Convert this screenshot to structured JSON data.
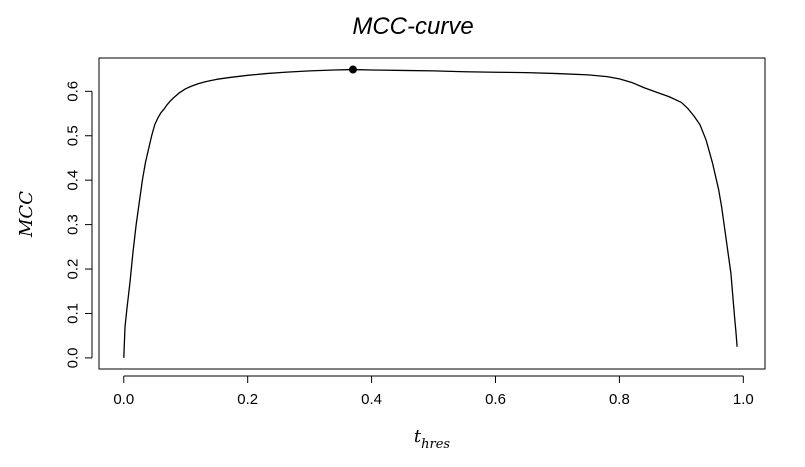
{
  "chart_data": {
    "type": "line",
    "title": "MCC-curve",
    "xlabel": "t",
    "xlabel_subscript": "hres",
    "ylabel": "MCC",
    "xlim": [
      -0.04,
      1.035
    ],
    "ylim": [
      -0.025,
      0.675
    ],
    "xticks": [
      0.0,
      0.2,
      0.4,
      0.6,
      0.8,
      1.0
    ],
    "xtick_labels": [
      "0.0",
      "0.2",
      "0.4",
      "0.6",
      "0.8",
      "1.0"
    ],
    "yticks": [
      0.0,
      0.1,
      0.2,
      0.3,
      0.4,
      0.5,
      0.6
    ],
    "ytick_labels": [
      "0.0",
      "0.1",
      "0.2",
      "0.3",
      "0.4",
      "0.5",
      "0.6"
    ],
    "grid": false,
    "line_color": "#000000",
    "series": [
      {
        "x": [
          0.0,
          0.002,
          0.005,
          0.01,
          0.015,
          0.02,
          0.025,
          0.03,
          0.035,
          0.04,
          0.045,
          0.05,
          0.055,
          0.06,
          0.065,
          0.07,
          0.075,
          0.08,
          0.09,
          0.1,
          0.11,
          0.12,
          0.13,
          0.14,
          0.15,
          0.17,
          0.2,
          0.23,
          0.26,
          0.3,
          0.34,
          0.37,
          0.4,
          0.45,
          0.5,
          0.55,
          0.6,
          0.65,
          0.7,
          0.75,
          0.78,
          0.8,
          0.82,
          0.84,
          0.86,
          0.88,
          0.9,
          0.91,
          0.92,
          0.93,
          0.94,
          0.95,
          0.96,
          0.965,
          0.97,
          0.975,
          0.98,
          0.983,
          0.986,
          0.988,
          0.99
        ],
        "y": [
          0.0,
          0.07,
          0.11,
          0.17,
          0.24,
          0.3,
          0.35,
          0.4,
          0.44,
          0.47,
          0.5,
          0.525,
          0.54,
          0.552,
          0.56,
          0.57,
          0.578,
          0.585,
          0.597,
          0.606,
          0.612,
          0.617,
          0.621,
          0.624,
          0.627,
          0.631,
          0.636,
          0.64,
          0.643,
          0.646,
          0.648,
          0.649,
          0.648,
          0.647,
          0.646,
          0.644,
          0.643,
          0.642,
          0.64,
          0.637,
          0.633,
          0.628,
          0.62,
          0.608,
          0.598,
          0.588,
          0.575,
          0.562,
          0.545,
          0.525,
          0.49,
          0.44,
          0.38,
          0.34,
          0.29,
          0.24,
          0.19,
          0.14,
          0.09,
          0.06,
          0.025
        ]
      }
    ],
    "highlight_point": {
      "x": 0.37,
      "y": 0.649
    }
  }
}
